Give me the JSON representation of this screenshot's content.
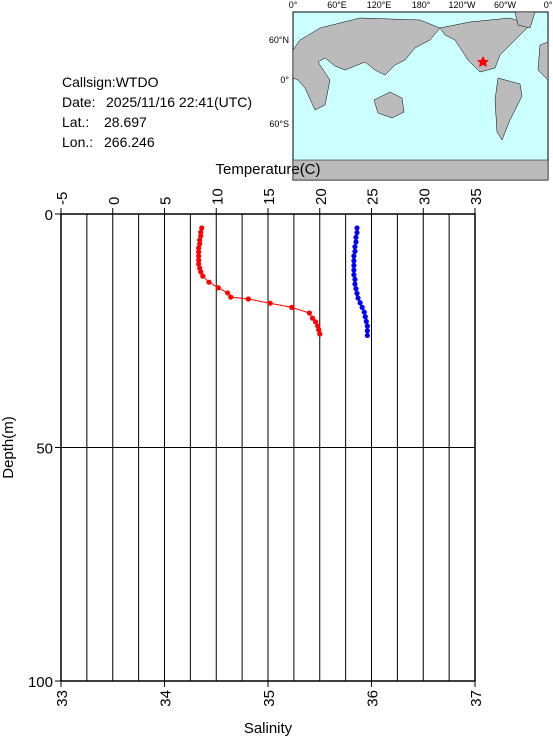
{
  "info": {
    "callsign": "Callsign:WTDO",
    "date_label": "Date:",
    "date": "2025/11/16 22:41(UTC)",
    "lat_label": "Lat.:",
    "lat": "28.697",
    "lon_label": "Lon.:",
    "lon": "266.246"
  },
  "map": {
    "lon_labels": [
      "0°",
      "60°E",
      "120°E",
      "180°",
      "120°W",
      "60°W",
      "0°"
    ],
    "lat_labels": [
      "60°N",
      "0°",
      "60°S"
    ]
  },
  "chart_data": {
    "type": "profile",
    "x2label": "Temperature(C)",
    "xlabel": "Salinity",
    "ylabel": "Depth(m)",
    "x2lim": [
      -5,
      35
    ],
    "x2ticks": [
      -5,
      0,
      5,
      10,
      15,
      20,
      25,
      30,
      35
    ],
    "xlim": [
      33,
      37
    ],
    "xticks": [
      33,
      34,
      35,
      36,
      37
    ],
    "ylim": [
      0,
      100
    ],
    "yticks": [
      0,
      50,
      100
    ],
    "y_inverted": true,
    "xgrid_step": 0.25,
    "series": [
      {
        "axis": "x2",
        "color": "#ff0000",
        "x": [
          8.6,
          8.5,
          8.5,
          8.4,
          8.4,
          8.3,
          8.3,
          8.3,
          8.3,
          8.3,
          8.4,
          8.5,
          8.7,
          9.3,
          10.2,
          11.1,
          11.4,
          13.1,
          15.2,
          17.3,
          19.0,
          19.3,
          19.6,
          19.8,
          19.9,
          20.0
        ],
        "y": [
          3.0,
          3.9,
          4.7,
          5.6,
          6.4,
          7.3,
          8.1,
          9.0,
          9.9,
          10.7,
          11.6,
          12.4,
          13.3,
          14.6,
          15.8,
          16.9,
          17.8,
          18.2,
          19.1,
          20.0,
          21.2,
          22.3,
          23.1,
          24.0,
          24.8,
          25.7
        ]
      },
      {
        "axis": "x",
        "color": "#0000ff",
        "x": [
          35.86,
          35.86,
          35.85,
          35.85,
          35.84,
          35.84,
          35.83,
          35.83,
          35.83,
          35.83,
          35.83,
          35.84,
          35.84,
          35.85,
          35.86,
          35.87,
          35.89,
          35.91,
          35.93,
          35.94,
          35.95,
          35.96,
          35.96,
          35.96
        ],
        "y": [
          3,
          4,
          5,
          6,
          7,
          8,
          9,
          10,
          11,
          12,
          13,
          14,
          15,
          16,
          17,
          18,
          19,
          20,
          21,
          22,
          23,
          24,
          25,
          26
        ]
      }
    ]
  }
}
